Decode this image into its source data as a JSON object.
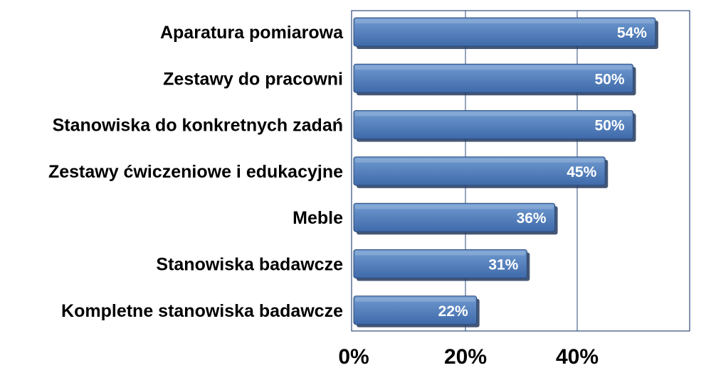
{
  "chart_data": {
    "type": "bar",
    "orientation": "horizontal",
    "categories": [
      "Aparatura pomiarowa",
      "Zestawy do pracowni",
      "Stanowiska do konkretnych zadań",
      "Zestawy ćwiczeniowe i edukacyjne",
      "Meble",
      "Stanowiska badawcze",
      "Kompletne stanowiska badawcze"
    ],
    "values": [
      54,
      50,
      50,
      45,
      36,
      31,
      22
    ],
    "value_labels": [
      "54%",
      "50%",
      "50%",
      "45%",
      "36%",
      "31%",
      "22%"
    ],
    "xlim": [
      0,
      60
    ],
    "xticks": [
      0,
      20,
      40
    ],
    "xtick_labels": [
      "0%",
      "20%",
      "40%"
    ],
    "grid": "vertical",
    "colors": {
      "bar_light": "#6f9ad0",
      "bar_dark": "#3f6aaa",
      "bar_edge": "#2a4a7a",
      "shadow": "#243a5e",
      "frame": "#2f4a7a",
      "grid": "#2f4a7a",
      "label_text": "#000000",
      "value_text": "#ffffff"
    }
  }
}
